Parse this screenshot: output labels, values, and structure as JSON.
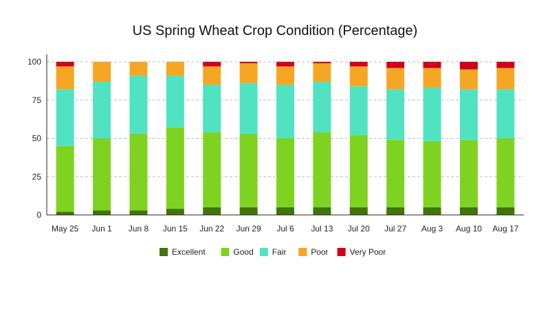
{
  "chart_data": {
    "type": "bar",
    "stacked": true,
    "title": "US Spring Wheat Crop Condition (Percentage)",
    "xlabel": "",
    "ylabel": "",
    "ylim": [
      0,
      100
    ],
    "yticks": [
      0,
      25,
      50,
      75,
      100
    ],
    "grid": true,
    "legend_position": "bottom",
    "categories": [
      "May 25",
      "Jun 1",
      "Jun 8",
      "Jun 15",
      "Jun 22",
      "Jun 29",
      "Jul 6",
      "Jul 13",
      "Jul 20",
      "Jul 27",
      "Aug 3",
      "Aug 10",
      "Aug 17"
    ],
    "series": [
      {
        "name": "Excellent",
        "color": "#417505",
        "values": [
          2,
          3,
          3,
          4,
          5,
          5,
          5,
          5,
          5,
          5,
          5,
          5,
          5
        ]
      },
      {
        "name": "Good",
        "color": "#7ED321",
        "values": [
          43,
          47,
          50,
          53,
          49,
          48,
          45,
          49,
          47,
          44,
          43,
          44,
          45
        ]
      },
      {
        "name": "Fair",
        "color": "#50E3C2",
        "values": [
          37,
          37,
          38,
          34,
          31,
          33,
          35,
          33,
          32,
          33,
          35,
          33,
          32
        ]
      },
      {
        "name": "Poor",
        "color": "#F5A623",
        "values": [
          15,
          13,
          9,
          9,
          12,
          13,
          12,
          12,
          13,
          14,
          13,
          13,
          14
        ]
      },
      {
        "name": "Very Poor",
        "color": "#D0021B",
        "values": [
          3,
          0,
          0,
          0,
          3,
          1,
          3,
          1,
          3,
          4,
          4,
          5,
          4
        ]
      }
    ]
  }
}
